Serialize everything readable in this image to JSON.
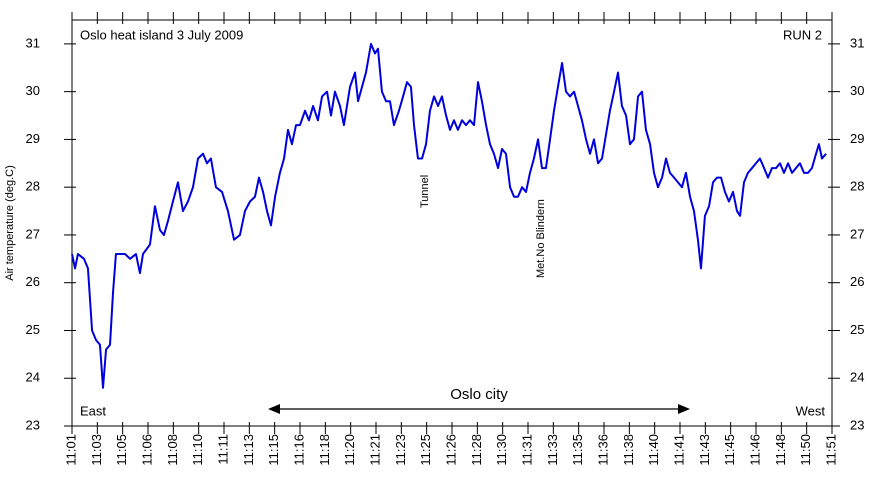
{
  "chart_data": {
    "type": "line",
    "title": "Oslo heat island 3 July 2009",
    "subtitle": "RUN 2",
    "y_label": "Air temperature (deg.C)",
    "annotations": [
      "East",
      "West",
      "Oslo city",
      "Tunnel",
      "Met.No Blindern"
    ],
    "xlim": [
      1,
      51
    ],
    "ylim": [
      23,
      31.5
    ],
    "yticks": [
      23,
      24,
      25,
      26,
      27,
      28,
      29,
      30,
      31
    ],
    "xticks": [
      {
        "value": 1,
        "label": "11:01"
      },
      {
        "value": 2.667,
        "label": "11:03"
      },
      {
        "value": 4.333,
        "label": "11:05"
      },
      {
        "value": 6,
        "label": "11:06"
      },
      {
        "value": 7.667,
        "label": "11:08"
      },
      {
        "value": 9.333,
        "label": "11:10"
      },
      {
        "value": 11,
        "label": "11:11"
      },
      {
        "value": 12.667,
        "label": "11:13"
      },
      {
        "value": 14.333,
        "label": "11:15"
      },
      {
        "value": 16,
        "label": "11:16"
      },
      {
        "value": 17.667,
        "label": "11:18"
      },
      {
        "value": 19.333,
        "label": "11:20"
      },
      {
        "value": 21,
        "label": "11:21"
      },
      {
        "value": 22.667,
        "label": "11:23"
      },
      {
        "value": 24.333,
        "label": "11:25"
      },
      {
        "value": 26,
        "label": "11:26"
      },
      {
        "value": 27.667,
        "label": "11:28"
      },
      {
        "value": 29.333,
        "label": "11:30"
      },
      {
        "value": 31,
        "label": "11:31"
      },
      {
        "value": 32.667,
        "label": "11:33"
      },
      {
        "value": 34.333,
        "label": "11:35"
      },
      {
        "value": 36,
        "label": "11:36"
      },
      {
        "value": 37.667,
        "label": "11:38"
      },
      {
        "value": 39.333,
        "label": "11:40"
      },
      {
        "value": 41,
        "label": "11:41"
      },
      {
        "value": 42.667,
        "label": "11:43"
      },
      {
        "value": 44.333,
        "label": "11:45"
      },
      {
        "value": 46,
        "label": "11:46"
      },
      {
        "value": 47.667,
        "label": "11:48"
      },
      {
        "value": 49.333,
        "label": "11:50"
      },
      {
        "value": 51,
        "label": "11:51"
      }
    ],
    "x": [
      1.0,
      1.2,
      1.39,
      1.79,
      2.05,
      2.32,
      2.58,
      2.84,
      3.04,
      3.24,
      3.5,
      3.7,
      3.89,
      4.16,
      4.49,
      4.82,
      5.21,
      5.47,
      5.67,
      6.13,
      6.46,
      6.79,
      7.05,
      7.32,
      7.64,
      7.97,
      8.3,
      8.63,
      8.96,
      9.29,
      9.62,
      9.88,
      10.14,
      10.47,
      10.87,
      11.26,
      11.66,
      12.05,
      12.38,
      12.71,
      13.04,
      13.3,
      13.57,
      13.83,
      14.09,
      14.36,
      14.68,
      14.95,
      15.21,
      15.47,
      15.74,
      16.0,
      16.33,
      16.59,
      16.86,
      17.18,
      17.45,
      17.78,
      18.04,
      18.3,
      18.63,
      18.89,
      19.29,
      19.62,
      19.82,
      20.08,
      20.34,
      20.67,
      20.93,
      21.13,
      21.39,
      21.66,
      21.92,
      22.18,
      22.51,
      22.78,
      23.04,
      23.3,
      23.5,
      23.76,
      24.03,
      24.29,
      24.55,
      24.82,
      25.08,
      25.34,
      25.61,
      25.87,
      26.13,
      26.39,
      26.66,
      26.92,
      27.18,
      27.45,
      27.71,
      27.97,
      28.24,
      28.5,
      28.76,
      29.03,
      29.29,
      29.55,
      29.82,
      30.08,
      30.34,
      30.61,
      30.87,
      31.13,
      31.39,
      31.66,
      31.92,
      32.18,
      32.45,
      32.71,
      32.97,
      33.24,
      33.5,
      33.76,
      34.03,
      34.29,
      34.55,
      34.82,
      35.08,
      35.34,
      35.61,
      35.87,
      36.13,
      36.39,
      36.66,
      36.92,
      37.18,
      37.45,
      37.71,
      37.97,
      38.24,
      38.5,
      38.76,
      39.03,
      39.29,
      39.55,
      39.82,
      40.08,
      40.34,
      40.61,
      40.87,
      41.13,
      41.39,
      41.66,
      41.92,
      42.18,
      42.38,
      42.64,
      42.91,
      43.17,
      43.43,
      43.7,
      43.96,
      44.22,
      44.49,
      44.75,
      44.95,
      45.21,
      45.47,
      45.74,
      46.0,
      46.26,
      46.53,
      46.79,
      47.05,
      47.32,
      47.58,
      47.84,
      48.11,
      48.37,
      48.63,
      48.89,
      49.16,
      49.42,
      49.68,
      49.95,
      50.14,
      50.34,
      50.61
    ],
    "series": [
      {
        "color": "#0000dd",
        "values": [
          26.6,
          26.3,
          26.6,
          26.5,
          26.3,
          25.0,
          24.8,
          24.7,
          23.8,
          24.6,
          24.7,
          25.8,
          26.6,
          26.6,
          26.6,
          26.5,
          26.6,
          26.2,
          26.6,
          26.8,
          27.6,
          27.1,
          27.0,
          27.3,
          27.7,
          28.1,
          27.5,
          27.7,
          28.0,
          28.6,
          28.7,
          28.5,
          28.6,
          28.0,
          27.9,
          27.5,
          26.9,
          27.0,
          27.5,
          27.7,
          27.8,
          28.2,
          27.9,
          27.5,
          27.2,
          27.8,
          28.3,
          28.6,
          29.2,
          28.9,
          29.3,
          29.3,
          29.6,
          29.4,
          29.7,
          29.4,
          29.9,
          30.0,
          29.5,
          30.0,
          29.7,
          29.3,
          30.1,
          30.4,
          29.8,
          30.1,
          30.4,
          31.0,
          30.8,
          30.9,
          30.0,
          29.8,
          29.8,
          29.3,
          29.6,
          29.9,
          30.2,
          30.1,
          29.3,
          28.6,
          28.6,
          28.9,
          29.6,
          29.9,
          29.7,
          29.9,
          29.5,
          29.2,
          29.4,
          29.2,
          29.4,
          29.3,
          29.4,
          29.3,
          30.2,
          29.8,
          29.3,
          28.9,
          28.7,
          28.4,
          28.8,
          28.7,
          28.0,
          27.8,
          27.8,
          28.0,
          27.9,
          28.3,
          28.6,
          29.0,
          28.4,
          28.4,
          29.0,
          29.6,
          30.1,
          30.6,
          30.0,
          29.9,
          30.0,
          29.7,
          29.4,
          29.0,
          28.7,
          29.0,
          28.5,
          28.6,
          29.1,
          29.6,
          30.0,
          30.4,
          29.7,
          29.5,
          28.9,
          29.0,
          29.9,
          30.0,
          29.2,
          28.9,
          28.3,
          28.0,
          28.2,
          28.6,
          28.3,
          28.2,
          28.1,
          28.0,
          28.3,
          27.8,
          27.5,
          26.9,
          26.3,
          27.4,
          27.6,
          28.1,
          28.2,
          28.2,
          27.9,
          27.7,
          27.9,
          27.5,
          27.4,
          28.1,
          28.3,
          28.4,
          28.5,
          28.6,
          28.4,
          28.2,
          28.4,
          28.4,
          28.5,
          28.3,
          28.5,
          28.3,
          28.4,
          28.5,
          28.3,
          28.3,
          28.4,
          28.7,
          28.9,
          28.6,
          28.7
        ]
      }
    ]
  }
}
